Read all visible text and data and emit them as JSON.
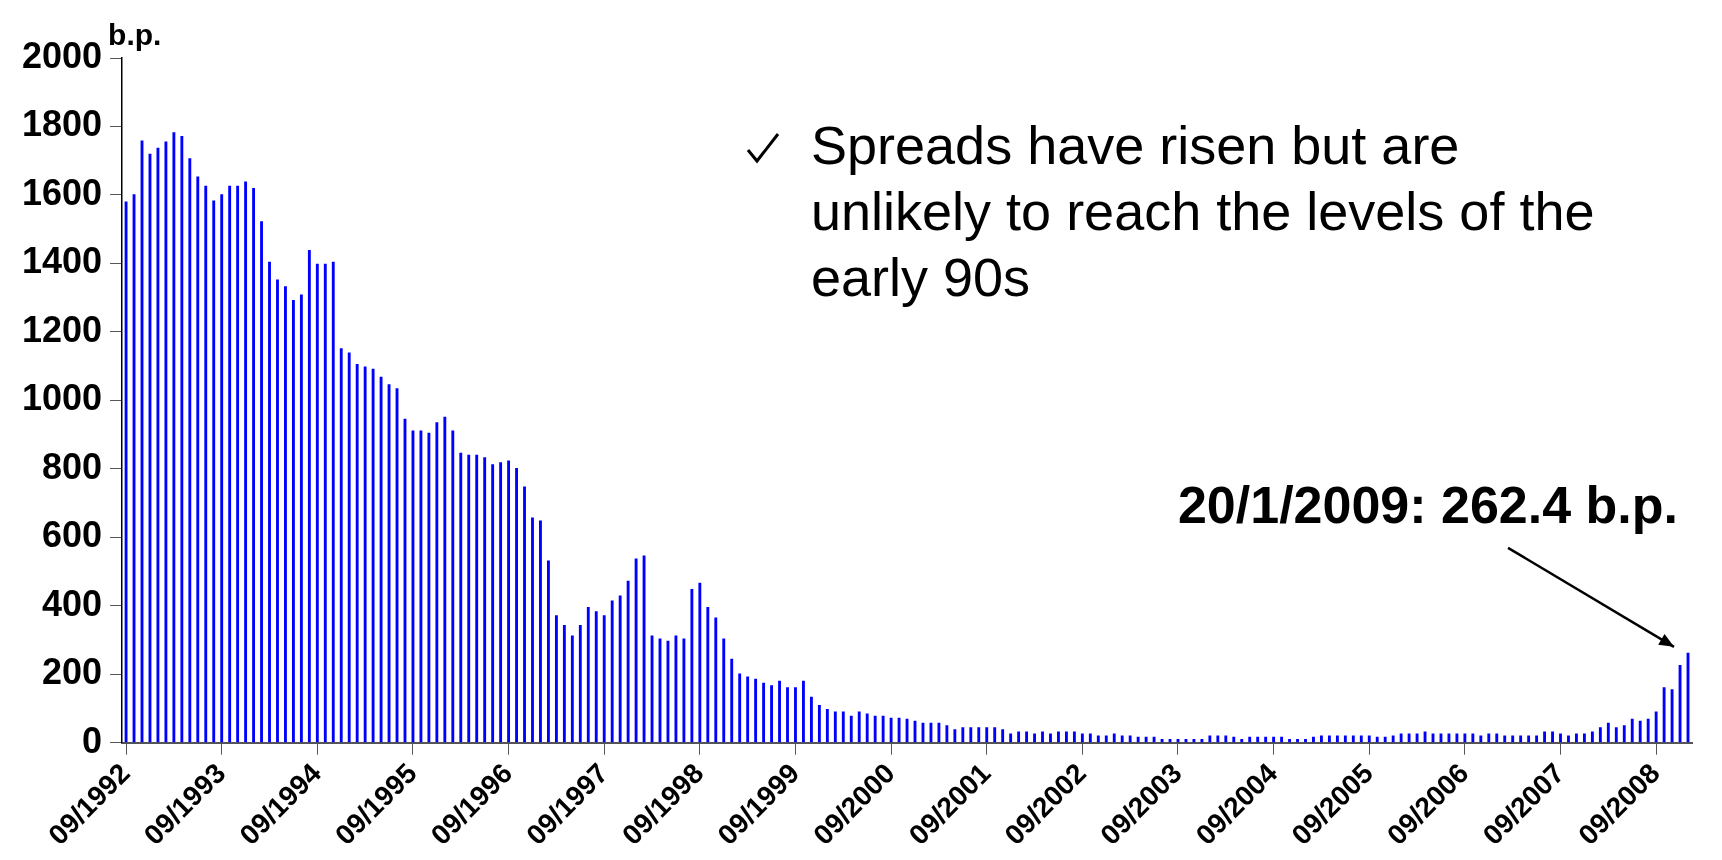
{
  "chart_data": {
    "type": "bar",
    "ylabel": "b.p.",
    "color": "#0000ff",
    "categories": [
      "09/1992",
      null,
      null,
      null,
      null,
      null,
      null,
      null,
      null,
      null,
      null,
      null,
      "09/1993",
      null,
      null,
      null,
      null,
      null,
      null,
      null,
      null,
      null,
      null,
      null,
      "09/1994",
      null,
      null,
      null,
      null,
      null,
      null,
      null,
      null,
      null,
      null,
      null,
      "09/1995",
      null,
      null,
      null,
      null,
      null,
      null,
      null,
      null,
      null,
      null,
      null,
      "09/1996",
      null,
      null,
      null,
      null,
      null,
      null,
      null,
      null,
      null,
      null,
      null,
      "09/1997",
      null,
      null,
      null,
      null,
      null,
      null,
      null,
      null,
      null,
      null,
      null,
      "09/1998",
      null,
      null,
      null,
      null,
      null,
      null,
      null,
      null,
      null,
      null,
      null,
      "09/1999",
      null,
      null,
      null,
      null,
      null,
      null,
      null,
      null,
      null,
      null,
      null,
      "09/2000",
      null,
      null,
      null,
      null,
      null,
      null,
      null,
      null,
      null,
      null,
      null,
      "09/2001",
      null,
      null,
      null,
      null,
      null,
      null,
      null,
      null,
      null,
      null,
      null,
      "09/2002",
      null,
      null,
      null,
      null,
      null,
      null,
      null,
      null,
      null,
      null,
      null,
      "09/2003",
      null,
      null,
      null,
      null,
      null,
      null,
      null,
      null,
      null,
      null,
      null,
      "09/2004",
      null,
      null,
      null,
      null,
      null,
      null,
      null,
      null,
      null,
      null,
      null,
      "09/2005",
      null,
      null,
      null,
      null,
      null,
      null,
      null,
      null,
      null,
      null,
      null,
      "09/2006",
      null,
      null,
      null,
      null,
      null,
      null,
      null,
      null,
      null,
      null,
      null,
      "09/2007",
      null,
      null,
      null,
      null,
      null,
      null,
      null,
      null,
      null,
      null,
      null,
      "09/2008",
      null,
      null,
      null,
      null
    ],
    "values": [
      1581,
      1602,
      1759,
      1720,
      1738,
      1756,
      1783,
      1772,
      1707,
      1654,
      1627,
      1584,
      1602,
      1627,
      1627,
      1639,
      1620,
      1523,
      1405,
      1353,
      1333,
      1293,
      1309,
      1439,
      1399,
      1399,
      1405,
      1152,
      1140,
      1106,
      1099,
      1092,
      1069,
      1047,
      1035,
      946,
      912,
      912,
      905,
      936,
      952,
      912,
      847,
      841,
      841,
      834,
      813,
      819,
      824,
      802,
      748,
      658,
      649,
      532,
      372,
      344,
      313,
      344,
      396,
      384,
      372,
      415,
      430,
      473,
      538,
      547,
      313,
      304,
      298,
      313,
      304,
      449,
      467,
      396,
      366,
      304,
      245,
      202,
      193,
      187,
      175,
      168,
      181,
      162,
      162,
      181,
      134,
      110,
      98,
      91,
      91,
      79,
      91,
      85,
      79,
      79,
      73,
      73,
      70,
      64,
      58,
      58,
      58,
      51,
      39,
      45,
      45,
      45,
      45,
      45,
      39,
      27,
      33,
      33,
      27,
      33,
      27,
      33,
      33,
      33,
      27,
      27,
      21,
      21,
      27,
      21,
      21,
      17,
      17,
      17,
      11,
      11,
      11,
      11,
      11,
      11,
      21,
      21,
      21,
      17,
      11,
      17,
      17,
      17,
      17,
      17,
      11,
      11,
      11,
      17,
      21,
      21,
      21,
      21,
      21,
      21,
      21,
      17,
      17,
      21,
      27,
      27,
      27,
      33,
      27,
      27,
      27,
      27,
      27,
      27,
      21,
      27,
      27,
      21,
      21,
      21,
      21,
      21,
      33,
      33,
      27,
      21,
      27,
      27,
      33,
      45,
      58,
      45,
      51,
      70,
      64,
      70,
      91,
      162,
      156,
      227,
      262.4
    ],
    "ylim": [
      0,
      2000
    ],
    "yticks": [
      0,
      200,
      400,
      600,
      800,
      1000,
      1200,
      1400,
      1600,
      1800,
      2000
    ],
    "grid": false,
    "legend": false,
    "annotations": [
      "Spreads have risen but are unlikely to reach the levels of the early 90s",
      "20/1/2009: 262.4 b.p."
    ]
  }
}
